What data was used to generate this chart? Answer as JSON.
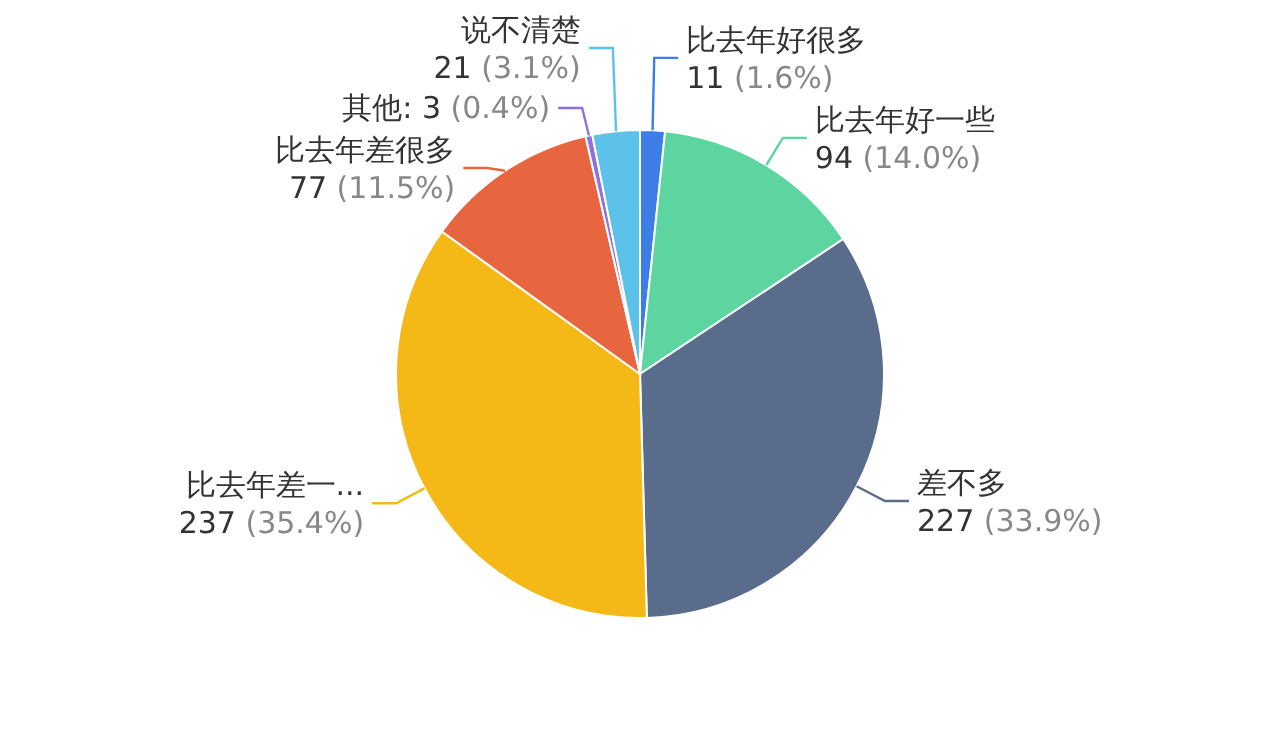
{
  "chart_data": {
    "type": "pie",
    "categories": [
      "比去年好很多",
      "比去年好一些",
      "差不多",
      "比去年差一...",
      "比去年差很多",
      "其他",
      "说不清楚"
    ],
    "values": [
      11,
      94,
      227,
      237,
      77,
      3,
      21
    ],
    "value_labels": [
      "11 (1.6%)",
      "94 (14.0%)",
      "227 (33.9%)",
      "237 (35.4%)",
      "77 (11.5%)",
      "3 (0.4%)",
      "21 (3.1%)"
    ],
    "colors": [
      "#3c7ee6",
      "#5dd5a1",
      "#5a6c8c",
      "#f4b916",
      "#e8663f",
      "#8f72e0",
      "#5cc2ea"
    ]
  }
}
